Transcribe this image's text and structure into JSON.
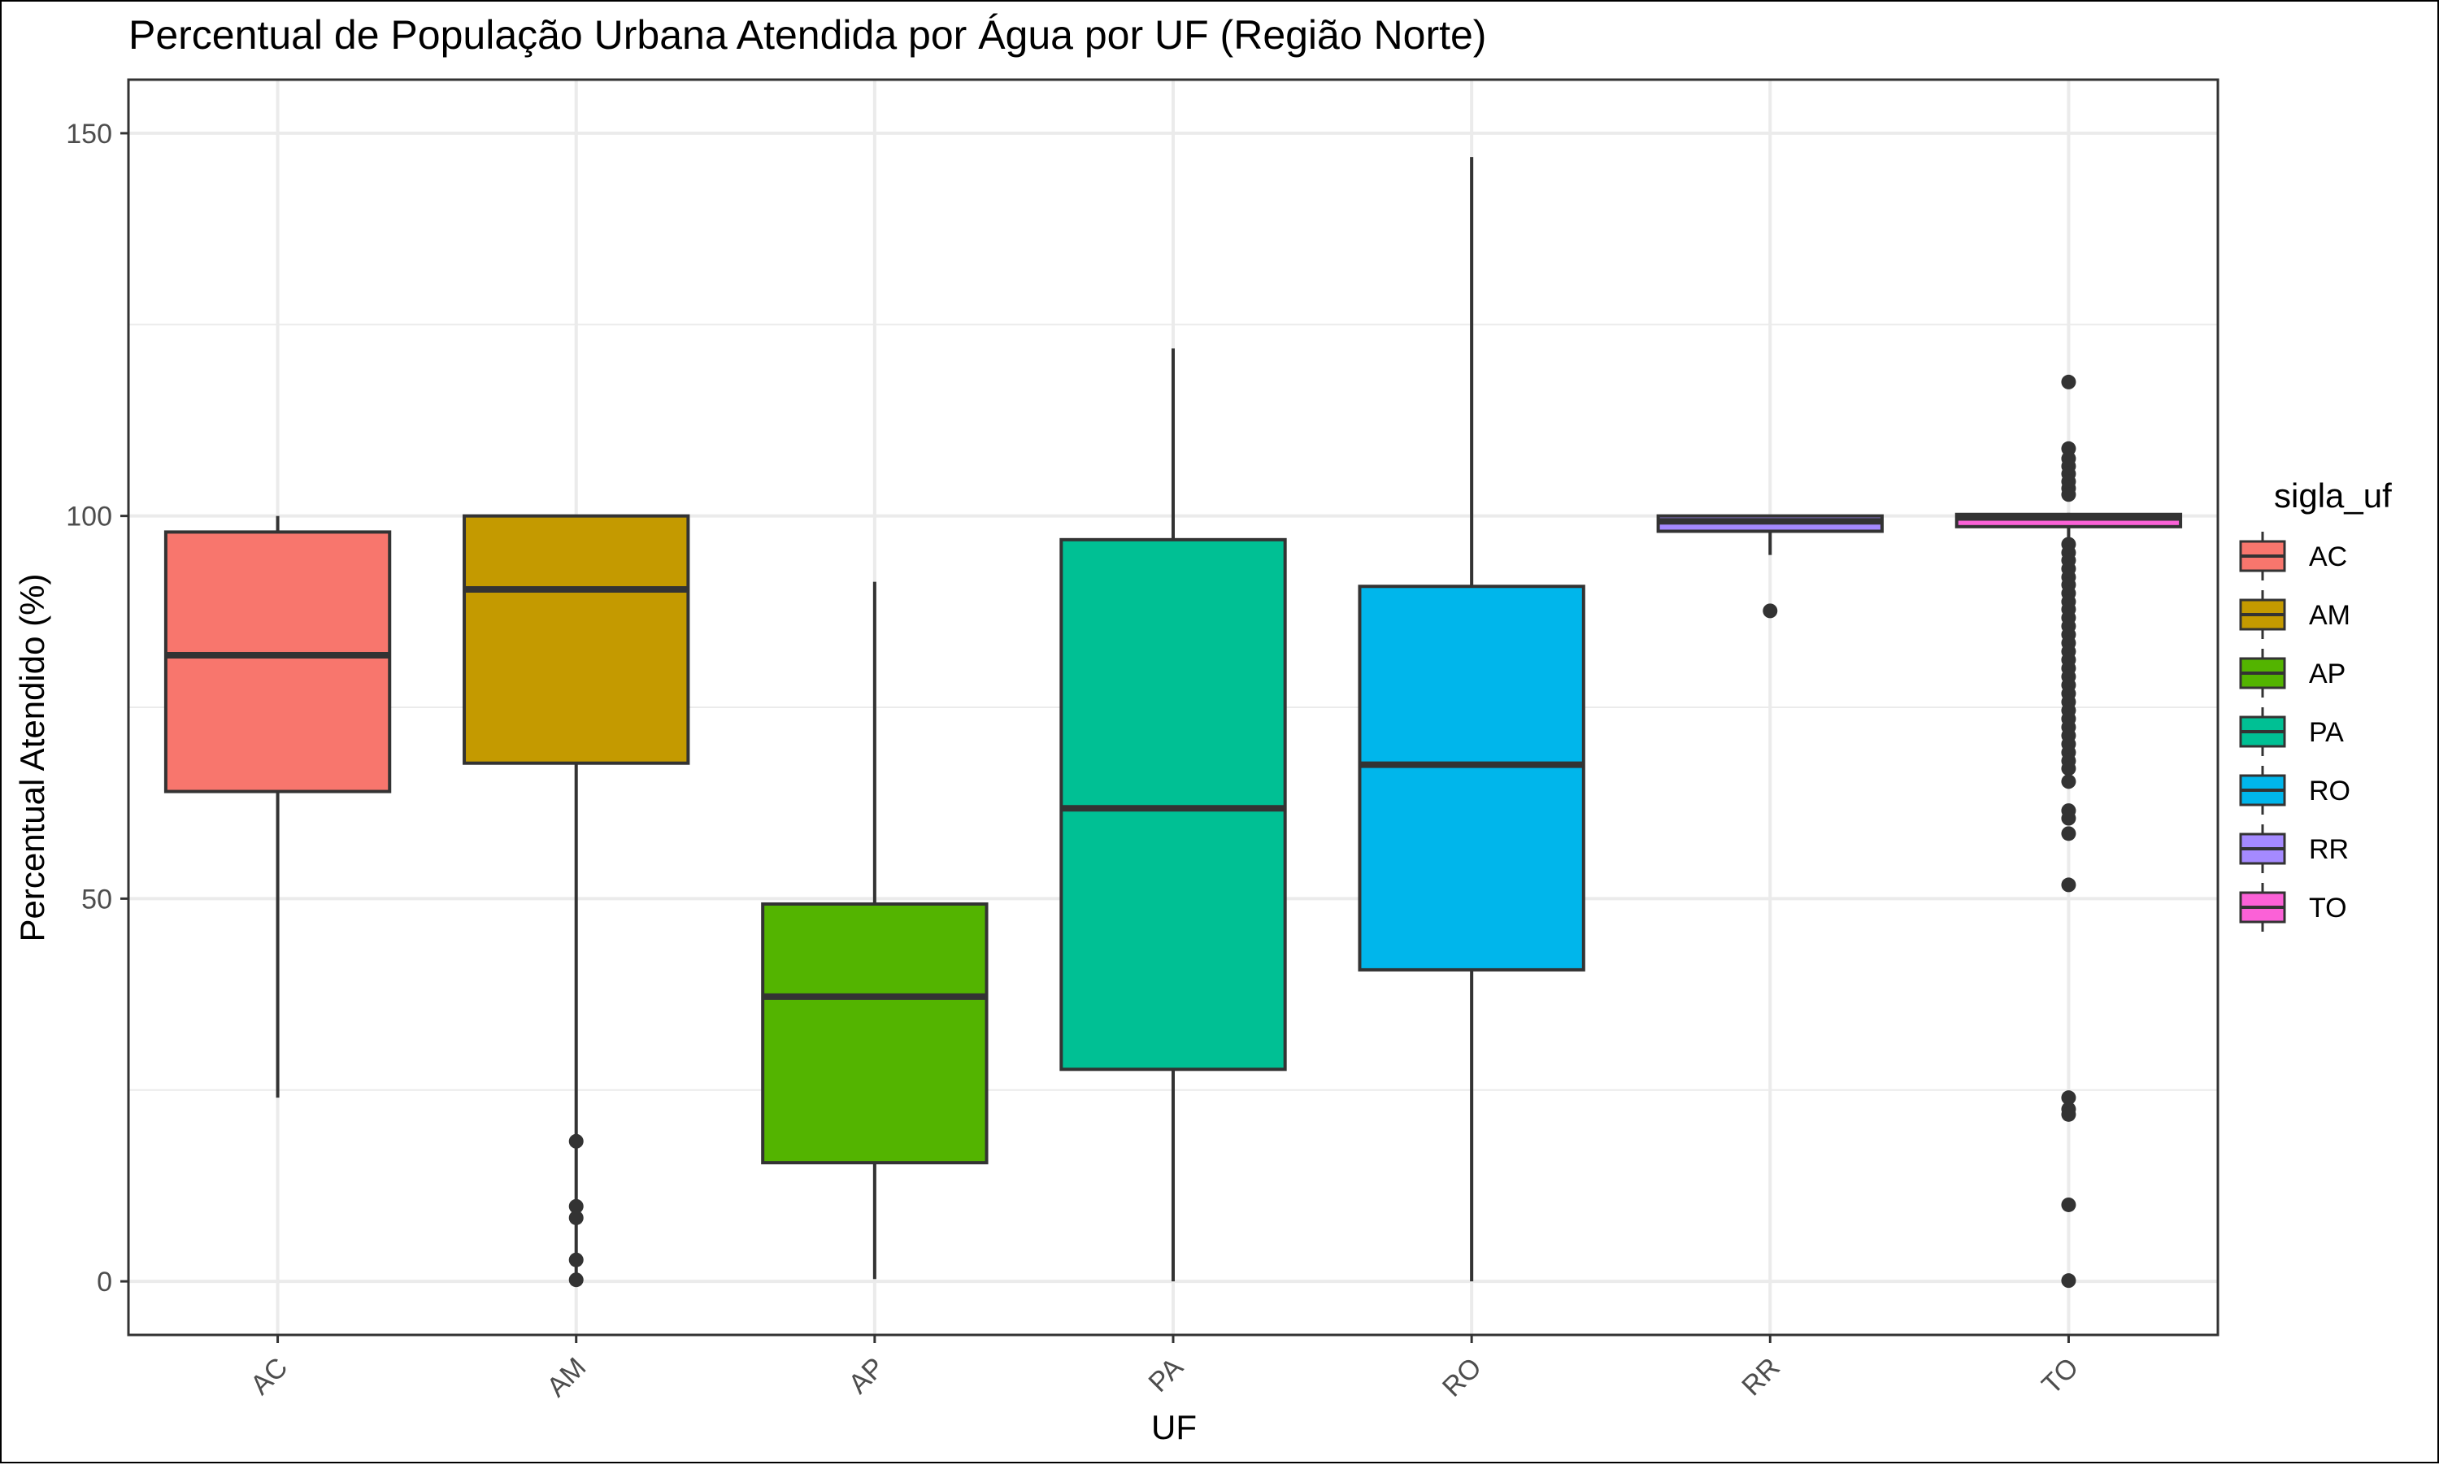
{
  "chart_data": {
    "type": "boxplot",
    "title": "Percentual de População Urbana Atendida por Água por UF (Região Norte)",
    "xlabel": "UF",
    "ylabel": "Percentual Atendido (%)",
    "ylim": [
      -7,
      157
    ],
    "y_ticks": [
      0,
      50,
      100,
      150
    ],
    "grid": true,
    "legend": {
      "title": "sigla_uf",
      "position": "right"
    },
    "categories": [
      "AC",
      "AM",
      "AP",
      "PA",
      "RO",
      "RR",
      "TO"
    ],
    "series": [
      {
        "name": "AC",
        "color": "#F8766D",
        "whisker_low": 24,
        "q1": 64,
        "median": 81.8,
        "q3": 97.9,
        "whisker_high": 100,
        "outliers": []
      },
      {
        "name": "AM",
        "color": "#C49A00",
        "whisker_low": 0,
        "q1": 67.7,
        "median": 90.4,
        "q3": 100,
        "whisker_high": 100,
        "outliers": [
          18.3,
          9.8,
          8.3,
          2.8,
          0.2
        ]
      },
      {
        "name": "AP",
        "color": "#53B400",
        "whisker_low": 0.3,
        "q1": 15.5,
        "median": 37.2,
        "q3": 49.3,
        "whisker_high": 91.4,
        "outliers": []
      },
      {
        "name": "PA",
        "color": "#00C094",
        "whisker_low": 0,
        "q1": 27.7,
        "median": 61.8,
        "q3": 96.9,
        "whisker_high": 121.9,
        "outliers": []
      },
      {
        "name": "RO",
        "color": "#00B6EB",
        "whisker_low": 0,
        "q1": 40.7,
        "median": 67.5,
        "q3": 90.8,
        "whisker_high": 146.9,
        "outliers": []
      },
      {
        "name": "RR",
        "color": "#A58AFF",
        "whisker_low": 94.9,
        "q1": 98,
        "median": 99.3,
        "q3": 100,
        "whisker_high": 100,
        "outliers": [
          87.6
        ]
      },
      {
        "name": "TO",
        "color": "#FB61D7",
        "whisker_low": 94.5,
        "q1": 98.6,
        "median": 99.8,
        "q3": 100.2,
        "whisker_high": 100.4,
        "outliers": [
          117.5,
          108.8,
          107.5,
          106.5,
          105.5,
          104.5,
          103.6,
          102.8,
          96.3,
          95.2,
          94.2,
          93.1,
          92.0,
          91.0,
          89.9,
          88.8,
          87.8,
          86.7,
          85.6,
          84.5,
          83.4,
          82.3,
          81.2,
          80.1,
          79.0,
          77.9,
          76.8,
          75.7,
          74.6,
          73.5,
          72.4,
          71.3,
          70.2,
          69.1,
          68.0,
          67.0,
          65.3,
          61.5,
          60.5,
          58.5,
          51.8,
          24.0,
          22.5,
          21.8,
          10.0,
          0.1
        ]
      }
    ]
  }
}
